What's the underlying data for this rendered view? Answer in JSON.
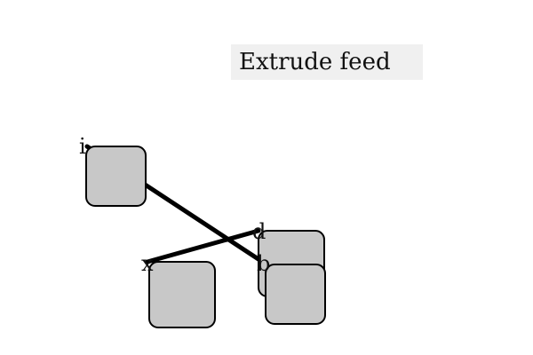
{
  "canvas": {
    "title": "Extrude feed",
    "background_color": "#ffffff",
    "banner_color": "#f0f0f0",
    "node_fill": "#c8c8c8",
    "stroke_color": "#000000"
  },
  "nodes": [
    {
      "id": "i",
      "port_label": "i"
    },
    {
      "id": "x",
      "port_label": "x"
    },
    {
      "id": "d",
      "port_label": "d"
    },
    {
      "id": "b",
      "port_label": "b"
    }
  ],
  "connections": [
    {
      "from": "i",
      "to": "b"
    },
    {
      "from": "x",
      "to": "d"
    }
  ]
}
